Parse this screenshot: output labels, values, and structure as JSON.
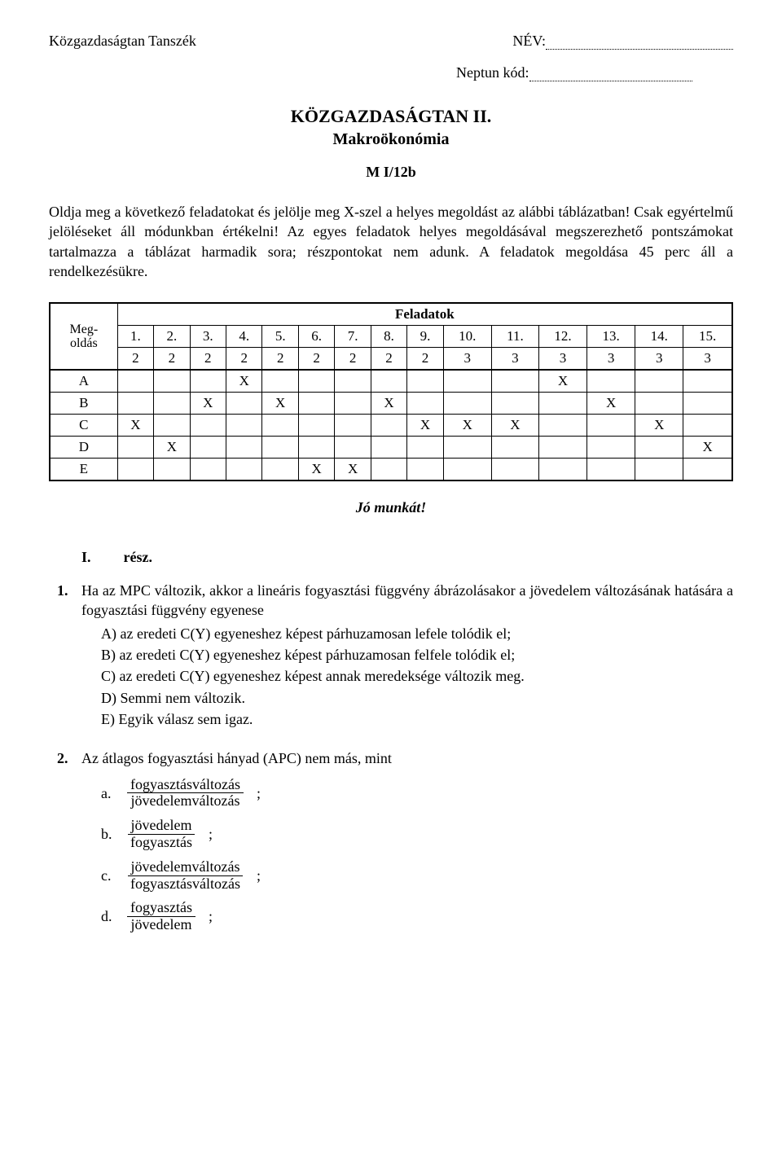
{
  "header": {
    "department": "Közgazdaságtan Tanszék",
    "name_label": "NÉV:",
    "neptun_label": "Neptun kód:"
  },
  "title": "KÖZGAZDASÁGTAN II.",
  "subtitle": "Makroökonómia",
  "exam_code": "M I/12b",
  "instructions": "Oldja meg a következő feladatokat és jelölje meg X-szel a helyes megoldást az alábbi táblázatban! Csak egyértelmű jelöléseket áll módunkban értékelni! Az egyes feladatok helyes megoldásával megszerezhető pontszámokat tartalmazza a táblázat harmadik sora; részpontokat nem adunk. A feladatok megoldása 45 perc áll a rendelkezésükre.",
  "grid": {
    "row_label_top": "Meg-",
    "row_label_bottom": "oldás",
    "header_title": "Feladatok",
    "columns": [
      "1.",
      "2.",
      "3.",
      "4.",
      "5.",
      "6.",
      "7.",
      "8.",
      "9.",
      "10.",
      "11.",
      "12.",
      "13.",
      "14.",
      "15."
    ],
    "points": [
      "2",
      "2",
      "2",
      "2",
      "2",
      "2",
      "2",
      "2",
      "2",
      "3",
      "3",
      "3",
      "3",
      "3",
      "3"
    ],
    "rows": [
      "A",
      "B",
      "C",
      "D",
      "E"
    ],
    "marks": {
      "A": [
        "",
        "",
        "",
        "X",
        "",
        "",
        "",
        "",
        "",
        "",
        "",
        "X",
        "",
        "",
        " "
      ],
      "B": [
        "",
        "",
        "X",
        "",
        "X",
        "",
        "",
        "X",
        "",
        "",
        "",
        "",
        "X",
        "",
        ""
      ],
      "C": [
        "X",
        "",
        "",
        "",
        "",
        "",
        "",
        "",
        "X",
        "X",
        "X",
        "",
        "",
        "X",
        ""
      ],
      "D": [
        "",
        "X",
        "",
        "",
        "",
        "",
        "",
        "",
        "",
        "",
        "",
        "",
        "",
        "",
        "X"
      ],
      "E": [
        "",
        "",
        "",
        "",
        "",
        "X",
        "X",
        "",
        "",
        "",
        "",
        "",
        "",
        "",
        ""
      ]
    }
  },
  "good_luck": "Jó munkát!",
  "section": {
    "num": "I.",
    "label": "rész."
  },
  "questions": [
    {
      "num": "1.",
      "stem": "Ha az MPC változik, akkor a lineáris fogyasztási függvény ábrázolásakor a jövedelem változásának hatására a fogyasztási függvény egyenese",
      "options": [
        {
          "label": "A)",
          "text": "az eredeti C(Y) egyeneshez képest párhuzamosan lefele tolódik el;"
        },
        {
          "label": "B)",
          "text": "az eredeti C(Y) egyeneshez képest párhuzamosan felfele tolódik el;"
        },
        {
          "label": "C)",
          "text": "az eredeti C(Y) egyeneshez képest annak  meredeksége változik meg."
        },
        {
          "label": "D)",
          "text": "Semmi nem változik."
        },
        {
          "label": "E)",
          "text": "Egyik válasz sem igaz."
        }
      ]
    },
    {
      "num": "2.",
      "stem": "Az átlagos fogyasztási hányad (APC) nem más, mint",
      "frac_options": [
        {
          "label": "a.",
          "num": "fogyasztásváltozás",
          "den": "jövedelemváltozás"
        },
        {
          "label": "b.",
          "num": "jövedelem",
          "den": "fogyasztás"
        },
        {
          "label": "c.",
          "num": "jövedelemváltozás",
          "den": "fogyasztásváltozás"
        },
        {
          "label": "d.",
          "num": "fogyasztás",
          "den": "jövedelem"
        }
      ]
    }
  ]
}
